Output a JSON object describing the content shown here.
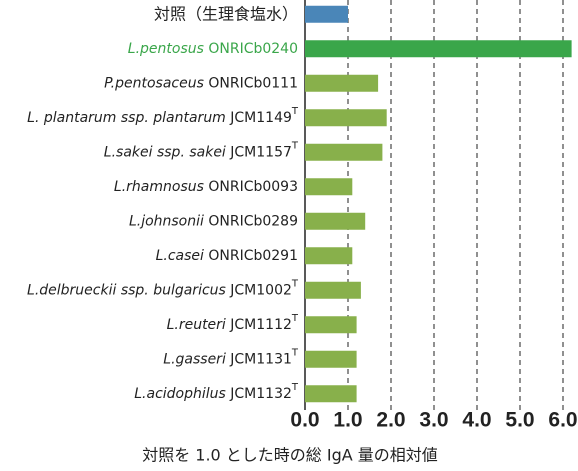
{
  "chart_data": {
    "type": "bar",
    "orientation": "horizontal",
    "x_label": "対照を 1.0 とした時の総 IgA 量の相対値",
    "categories": [
      {
        "roman": "対照（生理食塩水）"
      },
      {
        "italic": "L.pentosus",
        "roman": " ONRICb0240"
      },
      {
        "italic": "P.pentosaceus",
        "roman": " ONRICb0111"
      },
      {
        "italic": "L. plantarum ssp. plantarum",
        "roman": " JCM1149",
        "sup": "T"
      },
      {
        "italic": "L.sakei ssp. sakei",
        "roman": " JCM1157",
        "sup": "T"
      },
      {
        "italic": "L.rhamnosus",
        "roman": " ONRICb0093"
      },
      {
        "italic": "L.johnsonii",
        "roman": " ONRICb0289"
      },
      {
        "italic": "L.casei",
        "roman": " ONRICb0291"
      },
      {
        "italic": "L.delbrueckii ssp. bulgaricus",
        "roman": " JCM1002",
        "sup": "T"
      },
      {
        "italic": "L.reuteri",
        "roman": " JCM1112",
        "sup": "T"
      },
      {
        "italic": "L.gasseri",
        "roman": " JCM1131",
        "sup": "T"
      },
      {
        "italic": "L.acidophilus",
        "roman": " JCM1132",
        "sup": "T"
      }
    ],
    "values": [
      1.0,
      6.2,
      1.7,
      1.9,
      1.8,
      1.1,
      1.4,
      1.1,
      1.3,
      1.2,
      1.2,
      1.2
    ],
    "colors": [
      "#4a86b8",
      "#3aa64a",
      "#88b04b",
      "#88b04b",
      "#88b04b",
      "#88b04b",
      "#88b04b",
      "#88b04b",
      "#88b04b",
      "#88b04b",
      "#88b04b",
      "#88b04b"
    ],
    "xlim": [
      0,
      6
    ],
    "xticks": [
      {
        "value": 0,
        "label": "0.0"
      },
      {
        "value": 1,
        "label": "1.0"
      },
      {
        "value": 2,
        "label": "2.0"
      },
      {
        "value": 3,
        "label": "3.0"
      },
      {
        "value": 4,
        "label": "4.0"
      },
      {
        "value": 5,
        "label": "5.0"
      },
      {
        "value": 6,
        "label": "6.0"
      }
    ],
    "grid": true
  }
}
